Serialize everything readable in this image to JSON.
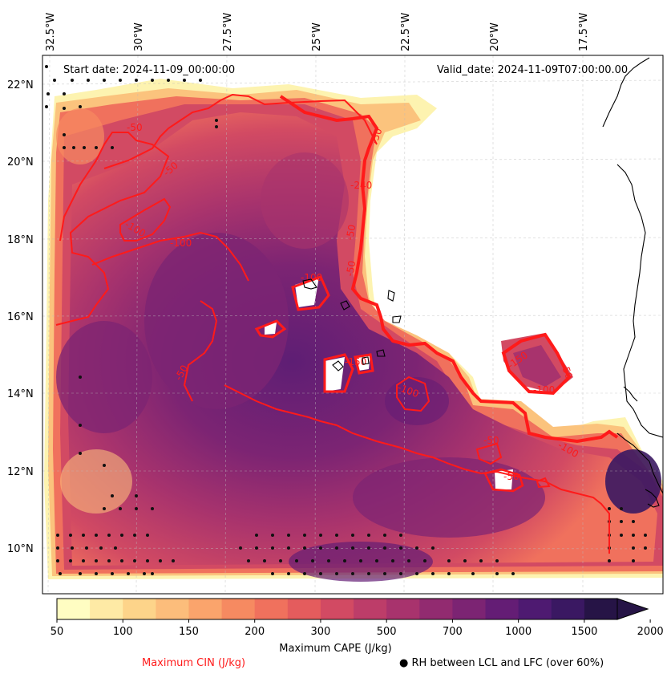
{
  "header": {
    "start_date": "Start date: 2024-11-09_00:00:00",
    "valid_date": "Valid_date: 2024-11-09T07:00:00.00"
  },
  "axes": {
    "lon_labels": [
      "32.5°W",
      "30°W",
      "27.5°W",
      "25°W",
      "22.5°W",
      "20°W",
      "17.5°W"
    ],
    "lat_labels": [
      "22°N",
      "20°N",
      "18°N",
      "16°N",
      "14°N",
      "12°N",
      "10°N"
    ]
  },
  "cin_contour_labels": [
    "-50",
    "-50",
    "-100",
    "-100",
    "-240",
    "-50",
    "-50",
    "-100",
    "-150",
    "-50",
    "-100",
    "-50",
    "-150",
    "-50",
    "-100",
    "-50",
    "-100",
    "-50"
  ],
  "colorbar": {
    "title": "Maximum CAPE (J/kg)",
    "ticks": [
      "50",
      "100",
      "150",
      "200",
      "300",
      "500",
      "700",
      "1000",
      "1500",
      "2000"
    ],
    "colors": [
      "#fffdc2",
      "#feeaa5",
      "#fdd48a",
      "#fcbd7b",
      "#faa46c",
      "#f68a61",
      "#f0715d",
      "#e45c5d",
      "#d24a63",
      "#bd3d69",
      "#a8336d",
      "#922b70",
      "#7c2473",
      "#641d75",
      "#4e1a71",
      "#3a1862",
      "#261446"
    ]
  },
  "legend": {
    "cin": "Maximum CIN (J/kg)",
    "rh": "RH between LCL and LFC (over 60%)",
    "cin_color": "#ff1a1a"
  }
}
